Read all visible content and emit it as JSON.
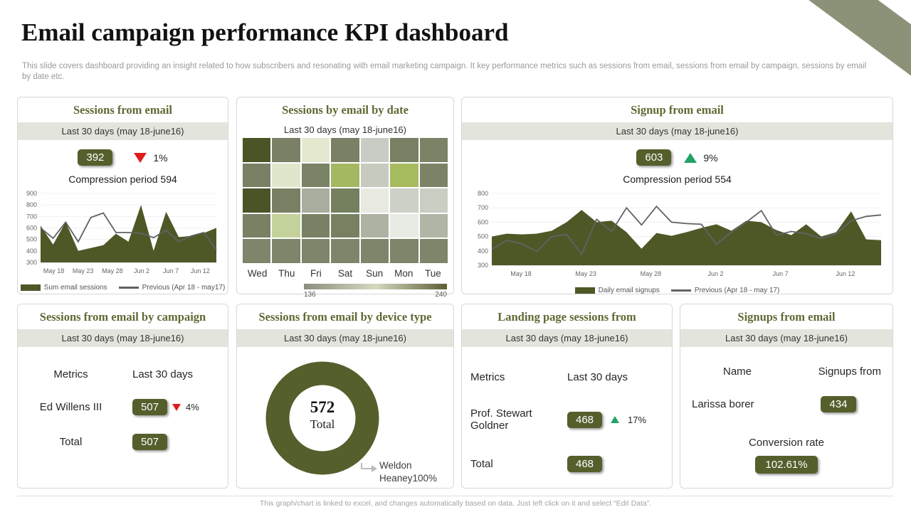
{
  "page": {
    "title": "Email campaign performance KPI dashboard",
    "subtitle": "This slide covers dashboard providing an insight related to how subscribers and resonating with email marketing campaign. It key performance metrics such as sessions from email, sessions from email by campaign, sessions by email by date etc.",
    "footer": "This graph/chart is linked to excel, and changes automatically based on data. Just left click on it and select “Edit Data”."
  },
  "colors": {
    "olive": "#545f2c",
    "area_fill": "#4d5826",
    "line_gray": "#5f6365",
    "sage_decoration": "#8b9278",
    "strip_bg": "#e3e5dd",
    "panel_title": "#5f6933",
    "red_down": "#e11b1b",
    "green_up": "#21a366"
  },
  "panels": {
    "sessions_kpi": {
      "title": "Sessions from email",
      "period": "Last 30 days (may 18-june16)",
      "value": "392",
      "delta": "1%",
      "direction": "down",
      "note": "Compression period 594"
    },
    "heat_panel": {
      "title": "Sessions by email by date",
      "period": "Last 30 days (may 18-june16)"
    },
    "signup_kpi": {
      "title": "Signup from email",
      "period": "Last 30 days (may 18-june16)",
      "value": "603",
      "delta": "9%",
      "direction": "up",
      "note": "Compression period 554"
    },
    "campaign_table": {
      "title": "Sessions from email by campaign",
      "period": "Last 30 days (may 18-june16)",
      "col1": "Metrics",
      "col2": "Last 30 days",
      "rows": [
        {
          "label": "Ed Willens III",
          "value": "507",
          "delta": "4%",
          "direction": "down"
        },
        {
          "label": "Total",
          "value": "507",
          "delta": "",
          "direction": ""
        }
      ]
    },
    "device_panel": {
      "title": "Sessions from email by device type",
      "period": "Last 30 days (may 18-june16)"
    },
    "landing_table": {
      "title": "Landing page sessions from",
      "period": "Last 30 days (may 18-june16)",
      "col1": "Metrics",
      "col2": "Last 30 days",
      "rows": [
        {
          "label": "Prof. Stewart Goldner",
          "value": "468",
          "delta": "17%",
          "direction": "up"
        },
        {
          "label": "Total",
          "value": "468",
          "delta": "",
          "direction": ""
        }
      ]
    },
    "signups_table": {
      "title": "Signups from email",
      "period": "Last 30 days (may 18-june16)",
      "col1": "Name",
      "col2": "Signups from",
      "rows": [
        {
          "label": "Larissa borer",
          "value": "434"
        }
      ],
      "conversion_label": "Conversion rate",
      "conversion_value": "102.61%"
    }
  },
  "chart_data": [
    {
      "type": "area",
      "title": "Sessions from email",
      "x_tick_labels": [
        "May 18",
        "May 23",
        "May 28",
        "Jun 2",
        "Jun 7",
        "Jun 12"
      ],
      "ylim": [
        300,
        900
      ],
      "ytick_step": 100,
      "grid": true,
      "legend_position": "bottom",
      "series": [
        {
          "name": "Sum email sessions",
          "style": "area",
          "color": "#4d5826",
          "values": [
            620,
            455,
            650,
            400,
            425,
            450,
            550,
            480,
            800,
            400,
            740,
            520,
            530,
            555,
            600
          ]
        },
        {
          "name": "Previous (Apr 18 - may17)",
          "style": "line",
          "color": "#5f6365",
          "values": [
            600,
            510,
            650,
            480,
            690,
            730,
            560,
            560,
            555,
            515,
            580,
            480,
            530,
            560,
            410
          ]
        }
      ]
    },
    {
      "type": "heatmap",
      "title": "Sessions by email by date",
      "columns": [
        "Wed",
        "Thu",
        "Fri",
        "Sat",
        "Sun",
        "Mon",
        "Tue"
      ],
      "legend_min": "136",
      "legend_max": "240",
      "legend_gradient": [
        "#8b8e7d",
        "#d6d8c0",
        "#5c5f33"
      ],
      "cell_colors": [
        [
          "#4a5527",
          "#798064",
          "#e3e8cf",
          "#798064",
          "#c8ccc4",
          "#788063",
          "#7b8266"
        ],
        [
          "#798064",
          "#e0e6cc",
          "#7b8367",
          "#a3b860",
          "#c6cabf",
          "#a6ba5e",
          "#7b8366"
        ],
        [
          "#4a5527",
          "#778062",
          "#a8ad9e",
          "#75805f",
          "#e8eae2",
          "#ccd0c6",
          "#c9cdc2"
        ],
        [
          "#798064",
          "#c3d29a",
          "#798064",
          "#778061",
          "#adb2a3",
          "#e8ebe3",
          "#b0b5a6"
        ],
        [
          "#7d856a",
          "#7d856a",
          "#7d856a",
          "#7d856a",
          "#7d856a",
          "#7d856a",
          "#7d856a"
        ]
      ]
    },
    {
      "type": "area",
      "title": "Signup from email",
      "x_tick_labels": [
        "May 18",
        "May 23",
        "May 28",
        "Jun 2",
        "Jun 7",
        "Jun 12"
      ],
      "ylim": [
        300,
        800
      ],
      "ytick_step": 100,
      "grid": true,
      "legend_position": "bottom",
      "series": [
        {
          "name": "Daily email signups",
          "style": "area",
          "color": "#4d5826",
          "values": [
            500,
            520,
            515,
            520,
            540,
            600,
            685,
            600,
            610,
            530,
            415,
            525,
            505,
            530,
            560,
            585,
            540,
            610,
            600,
            545,
            510,
            585,
            500,
            530,
            675,
            480,
            475
          ]
        },
        {
          "name": "Previous (Apr 18 - may 17)",
          "style": "line",
          "color": "#5f6365",
          "values": [
            410,
            475,
            450,
            395,
            500,
            515,
            375,
            620,
            535,
            700,
            580,
            710,
            600,
            590,
            585,
            445,
            530,
            600,
            680,
            510,
            535,
            520,
            485,
            520,
            610,
            640,
            650
          ]
        }
      ]
    },
    {
      "type": "donut",
      "title": "Sessions from email by device type",
      "total_value": "572",
      "total_label": "Total",
      "slices": [
        {
          "name": "Weldon Heaney",
          "percent": "100%",
          "color": "#545f2c"
        }
      ]
    }
  ]
}
